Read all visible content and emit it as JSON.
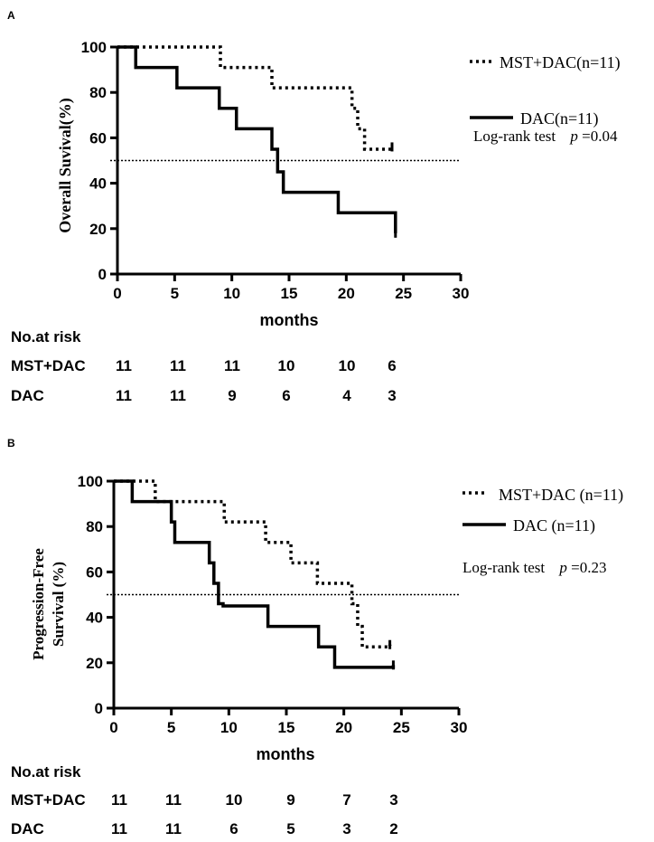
{
  "chart_data": [
    {
      "panel_label": "A",
      "type": "line",
      "step": true,
      "ylabel": "Overall Suvival(%)",
      "xlabel": "months",
      "xlim": [
        0,
        30
      ],
      "ylim": [
        0,
        100
      ],
      "xticks": [
        "0",
        "5",
        "10",
        "15",
        "20",
        "25",
        "30"
      ],
      "yticks": [
        "0",
        "20",
        "40",
        "60",
        "80",
        "100"
      ],
      "reference_line": 50,
      "series": [
        {
          "name": "MST+DAC(n=11)",
          "style": "dotted",
          "x": [
            0,
            9,
            13.5,
            20.5,
            21,
            21.6,
            24
          ],
          "y": [
            100,
            91,
            82,
            73,
            64,
            55,
            56
          ]
        },
        {
          "name": "DAC(n=11)",
          "style": "solid",
          "x": [
            0,
            1.6,
            5.2,
            8.9,
            10.4,
            13.5,
            14,
            14.5,
            15.2,
            19.3,
            24.3
          ],
          "y": [
            100,
            91,
            82,
            73,
            64,
            55,
            45,
            36,
            36,
            27,
            18
          ]
        }
      ],
      "annotation_prefix": "Log-rank test",
      "annotation_p_symbol": "p",
      "annotation_p_value": "=0.04",
      "risk_table": {
        "title": "No.at risk",
        "rows": [
          {
            "label": "MST+DAC",
            "values": [
              "11",
              "11",
              "11",
              "10",
              "10",
              "6"
            ]
          },
          {
            "label": "DAC",
            "values": [
              "11",
              "11",
              "9",
              "6",
              "4",
              "3"
            ]
          }
        ]
      }
    },
    {
      "panel_label": "B",
      "type": "line",
      "step": true,
      "ylabel_line1": "Progression-Free",
      "ylabel_line2": "Survival (%)",
      "xlabel": "months",
      "xlim": [
        0,
        30
      ],
      "ylim": [
        0,
        100
      ],
      "xticks": [
        "0",
        "5",
        "10",
        "15",
        "20",
        "25",
        "30"
      ],
      "yticks": [
        "0",
        "20",
        "40",
        "60",
        "80",
        "100"
      ],
      "reference_line": 50,
      "series": [
        {
          "name": "MST+DAC (n=11)",
          "style": "dotted",
          "x": [
            0,
            2.5,
            3.6,
            9.6,
            13.2,
            15.4,
            17.7,
            20.7,
            21.2,
            21.6,
            24
          ],
          "y": [
            100,
            100,
            91,
            82,
            73,
            64,
            55,
            46,
            36,
            27,
            28
          ]
        },
        {
          "name": "DAC (n=11)",
          "style": "solid",
          "x": [
            0,
            1.6,
            5,
            5.3,
            8.3,
            8.7,
            9.1,
            9.5,
            13.4,
            17.8,
            19.2,
            24.3
          ],
          "y": [
            100,
            91,
            82,
            73,
            64,
            55,
            46,
            45,
            36,
            27,
            18,
            19
          ]
        }
      ],
      "annotation_prefix": "Log-rank test",
      "annotation_p_symbol": "p",
      "annotation_p_value": "=0.23",
      "risk_table": {
        "title": "No.at risk",
        "rows": [
          {
            "label": "MST+DAC",
            "values": [
              "11",
              "11",
              "10",
              "9",
              "7",
              "3"
            ]
          },
          {
            "label": "DAC",
            "values": [
              "11",
              "11",
              "6",
              "5",
              "3",
              "2"
            ]
          }
        ]
      }
    }
  ]
}
